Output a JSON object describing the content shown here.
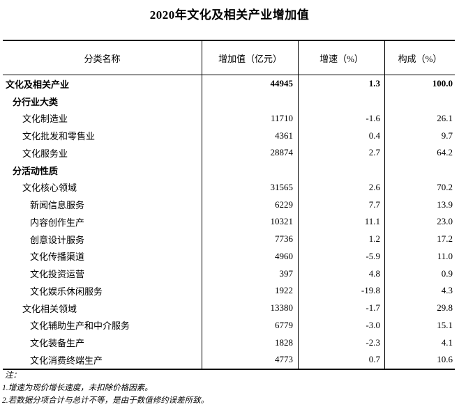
{
  "title": "2020年文化及相关产业增加值",
  "table": {
    "columns": [
      "分类名称",
      "增加值（亿元）",
      "增速（%）",
      "构成（%）"
    ],
    "rows": [
      {
        "name": "文化及相关产业",
        "level": 0,
        "bold": true,
        "value": "44945",
        "growth": "1.3",
        "share": "100.0"
      },
      {
        "name": "分行业大类",
        "level": 1,
        "bold": true,
        "value": "",
        "growth": "",
        "share": ""
      },
      {
        "name": "文化制造业",
        "level": 2,
        "bold": false,
        "value": "11710",
        "growth": "-1.6",
        "share": "26.1"
      },
      {
        "name": "文化批发和零售业",
        "level": 2,
        "bold": false,
        "value": "4361",
        "growth": "0.4",
        "share": "9.7"
      },
      {
        "name": "文化服务业",
        "level": 2,
        "bold": false,
        "value": "28874",
        "growth": "2.7",
        "share": "64.2"
      },
      {
        "name": "分活动性质",
        "level": 1,
        "bold": true,
        "value": "",
        "growth": "",
        "share": ""
      },
      {
        "name": "文化核心领域",
        "level": 2,
        "bold": false,
        "value": "31565",
        "growth": "2.6",
        "share": "70.2"
      },
      {
        "name": "新闻信息服务",
        "level": 3,
        "bold": false,
        "value": "6229",
        "growth": "7.7",
        "share": "13.9"
      },
      {
        "name": "内容创作生产",
        "level": 3,
        "bold": false,
        "value": "10321",
        "growth": "11.1",
        "share": "23.0"
      },
      {
        "name": "创意设计服务",
        "level": 3,
        "bold": false,
        "value": "7736",
        "growth": "1.2",
        "share": "17.2"
      },
      {
        "name": "文化传播渠道",
        "level": 3,
        "bold": false,
        "value": "4960",
        "growth": "-5.9",
        "share": "11.0"
      },
      {
        "name": "文化投资运营",
        "level": 3,
        "bold": false,
        "value": "397",
        "growth": "4.8",
        "share": "0.9"
      },
      {
        "name": "文化娱乐休闲服务",
        "level": 3,
        "bold": false,
        "value": "1922",
        "growth": "-19.8",
        "share": "4.3"
      },
      {
        "name": "文化相关领域",
        "level": 2,
        "bold": false,
        "value": "13380",
        "growth": "-1.7",
        "share": "29.8"
      },
      {
        "name": "文化辅助生产和中介服务",
        "level": 3,
        "bold": false,
        "value": "6779",
        "growth": "-3.0",
        "share": "15.1"
      },
      {
        "name": "文化装备生产",
        "level": 3,
        "bold": false,
        "value": "1828",
        "growth": "-2.3",
        "share": "4.1"
      },
      {
        "name": "文化消费终端生产",
        "level": 3,
        "bold": false,
        "value": "4773",
        "growth": "0.7",
        "share": "10.6"
      }
    ]
  },
  "notes": {
    "label": "注：",
    "items": [
      "1.增速为现价增长速度，未扣除价格因素。",
      "2.若数据分项合计与总计不等，是由于数值修约误差所致。"
    ]
  }
}
